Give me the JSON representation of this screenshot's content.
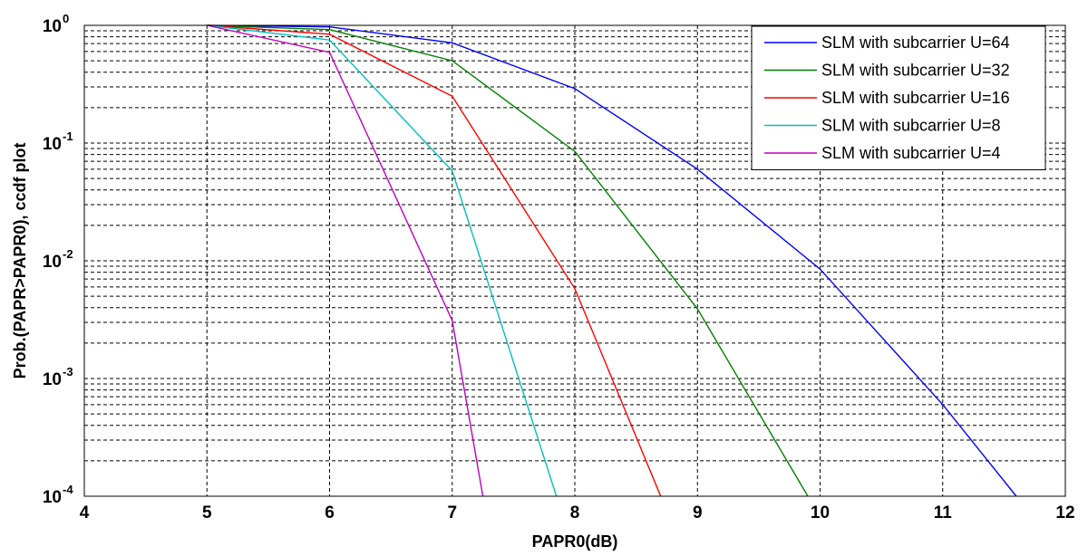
{
  "chart_data": {
    "type": "line",
    "title": "",
    "xlabel": "PAPR0(dB)",
    "ylabel": "Prob.(PAPR>PAPR0), ccdf plot",
    "xlim": [
      4,
      12
    ],
    "ylim": [
      0.0001,
      1
    ],
    "yscale": "log",
    "grid": true,
    "legend_position": "top-right",
    "x_ticks": [
      "4",
      "5",
      "6",
      "7",
      "8",
      "9",
      "10",
      "11",
      "12"
    ],
    "y_ticks": [
      {
        "base": "10",
        "exp": "-4",
        "value": 0.0001
      },
      {
        "base": "10",
        "exp": "-3",
        "value": 0.001
      },
      {
        "base": "10",
        "exp": "-2",
        "value": 0.01
      },
      {
        "base": "10",
        "exp": "-1",
        "value": 0.1
      },
      {
        "base": "10",
        "exp": "0",
        "value": 1
      }
    ],
    "series": [
      {
        "name": "SLM with subcarrier U=64",
        "color": "#0000ff",
        "x": [
          5,
          6,
          7,
          8,
          9,
          10,
          11,
          11.6
        ],
        "y": [
          1,
          0.97,
          0.71,
          0.29,
          0.06,
          0.0085,
          0.0006,
          0.0001
        ]
      },
      {
        "name": "SLM with subcarrier U=32",
        "color": "#008000",
        "x": [
          5,
          6,
          7,
          8,
          9,
          9.9
        ],
        "y": [
          1,
          0.92,
          0.5,
          0.085,
          0.0039,
          0.0001
        ]
      },
      {
        "name": "SLM with subcarrier U=16",
        "color": "#ff0000",
        "x": [
          5,
          6,
          7,
          8,
          8.7
        ],
        "y": [
          1,
          0.84,
          0.25,
          0.0058,
          0.0001
        ]
      },
      {
        "name": "SLM with subcarrier U=8",
        "color": "#00bfbf",
        "x": [
          5,
          6,
          7,
          7.85
        ],
        "y": [
          1,
          0.75,
          0.058,
          0.0001
        ]
      },
      {
        "name": "SLM with subcarrier U=4",
        "color": "#bf00bf",
        "x": [
          5,
          6,
          7,
          7.25
        ],
        "y": [
          1,
          0.59,
          0.0031,
          0.0001
        ]
      }
    ]
  }
}
